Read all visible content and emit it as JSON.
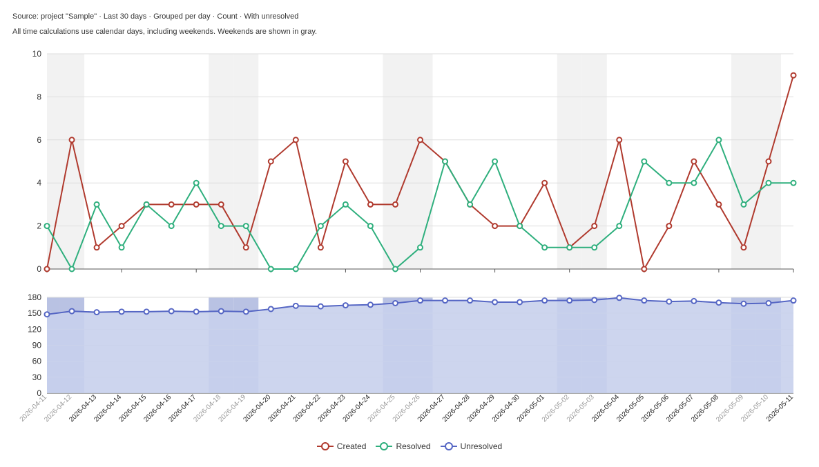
{
  "header": {
    "source_line": "Source: project \"Sample\" · Last 30 days · Grouped per day · Count · With unresolved",
    "note_line": "All time calculations use calendar days, including weekends. Weekends are shown in gray."
  },
  "colors": {
    "created": "#b03a2e",
    "resolved": "#2eaf7d",
    "unresolved": "#5566c4",
    "unresolved_fill": "#c8d0ec",
    "weekend_band": "#f2f2f2",
    "weekend_label": "#999999",
    "grid": "#dddddd"
  },
  "chart_data": [
    {
      "type": "line",
      "categories": [
        "2026-04-11",
        "2026-04-12",
        "2026-04-13",
        "2026-04-14",
        "2026-04-15",
        "2026-04-16",
        "2026-04-17",
        "2026-04-18",
        "2026-04-19",
        "2026-04-20",
        "2026-04-21",
        "2026-04-22",
        "2026-04-23",
        "2026-04-24",
        "2026-04-25",
        "2026-04-26",
        "2026-04-27",
        "2026-04-28",
        "2026-04-29",
        "2026-04-30",
        "2026-05-01",
        "2026-05-02",
        "2026-05-03",
        "2026-05-04",
        "2026-05-05",
        "2026-05-06",
        "2026-05-07",
        "2026-05-08",
        "2026-05-09",
        "2026-05-10",
        "2026-05-11"
      ],
      "weekend_categories": [
        "2026-04-11",
        "2026-04-12",
        "2026-04-18",
        "2026-04-19",
        "2026-04-25",
        "2026-04-26",
        "2026-05-02",
        "2026-05-03",
        "2026-05-09",
        "2026-05-10"
      ],
      "series": [
        {
          "name": "Created",
          "values": [
            0,
            6,
            1,
            2,
            3,
            3,
            3,
            3,
            1,
            5,
            6,
            1,
            5,
            3,
            3,
            6,
            5,
            3,
            2,
            2,
            4,
            1,
            2,
            6,
            0,
            2,
            5,
            3,
            1,
            5,
            9
          ]
        },
        {
          "name": "Resolved",
          "values": [
            2,
            0,
            3,
            1,
            3,
            2,
            4,
            2,
            2,
            0,
            0,
            2,
            3,
            2,
            0,
            1,
            5,
            3,
            5,
            2,
            1,
            1,
            1,
            2,
            5,
            4,
            4,
            6,
            3,
            4,
            4
          ]
        }
      ],
      "ylim": [
        0,
        10
      ],
      "yticks": [
        0,
        2,
        4,
        6,
        8,
        10
      ],
      "grid": true
    },
    {
      "type": "area",
      "series": [
        {
          "name": "Unresolved",
          "values": [
            148,
            154,
            152,
            153,
            153,
            154,
            153,
            154,
            153,
            158,
            164,
            163,
            165,
            166,
            169,
            174,
            174,
            174,
            171,
            171,
            174,
            174,
            175,
            179,
            174,
            172,
            173,
            170,
            168,
            169,
            174
          ]
        }
      ],
      "ylim": [
        0,
        180
      ],
      "yticks": [
        0,
        30,
        60,
        90,
        120,
        150,
        180
      ],
      "grid": true
    }
  ],
  "legend": {
    "placement": "bottom-center",
    "items": [
      "Created",
      "Resolved",
      "Unresolved"
    ]
  }
}
